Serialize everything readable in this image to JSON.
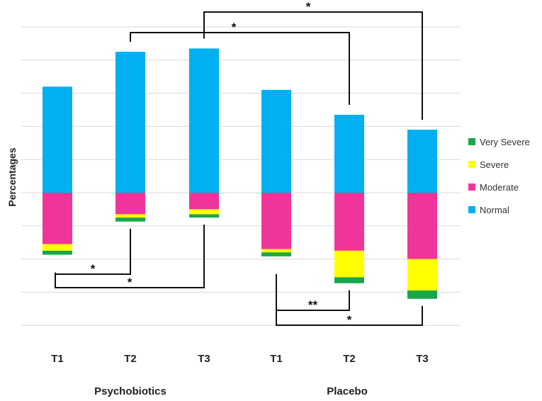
{
  "chart_data": {
    "type": "bar",
    "stacked": "diverging",
    "title": "",
    "xlabel": "",
    "ylabel": "Percentages",
    "categories": [
      "T1",
      "T2",
      "T3",
      "T1",
      "T2",
      "T3"
    ],
    "groups": [
      {
        "name": "Psychobiotics",
        "categories": [
          0,
          1,
          2
        ]
      },
      {
        "name": "Placebo",
        "categories": [
          3,
          4,
          5
        ]
      }
    ],
    "series": [
      {
        "name": "Very Severe",
        "color": "#1aa64a",
        "direction": "negative",
        "values": [
          1.2,
          1.2,
          1.0,
          1.2,
          1.8,
          2.5
        ]
      },
      {
        "name": "Severe",
        "color": "#ffff00",
        "direction": "negative",
        "values": [
          2.0,
          1.0,
          1.5,
          1.0,
          8.0,
          9.5
        ]
      },
      {
        "name": "Moderate",
        "color": "#f0359a",
        "direction": "negative",
        "values": [
          15.5,
          6.5,
          5.0,
          17.0,
          17.5,
          20.0
        ]
      },
      {
        "name": "Normal",
        "color": "#00b0f0",
        "direction": "positive",
        "values": [
          32.0,
          42.5,
          43.5,
          31.0,
          23.5,
          19.0
        ]
      }
    ],
    "ylim": [
      -41.5,
      57.5
    ],
    "gridlines": [
      -40,
      -30,
      -20,
      -10,
      0,
      10,
      20,
      30,
      40,
      50
    ],
    "legend": {
      "position": "right",
      "order": [
        "Very Severe",
        "Severe",
        "Moderate",
        "Normal"
      ]
    },
    "significance": [
      {
        "from": 1,
        "to": 4,
        "side": "top",
        "label": "*"
      },
      {
        "from": 2,
        "to": 5,
        "side": "top",
        "label": "*"
      },
      {
        "from": 0,
        "to": 1,
        "side": "bottom",
        "label": "*"
      },
      {
        "from": 0,
        "to": 2,
        "side": "bottom",
        "label": "*"
      },
      {
        "from": 3,
        "to": 4,
        "side": "bottom",
        "label": "**"
      },
      {
        "from": 3,
        "to": 5,
        "side": "bottom",
        "label": "*"
      }
    ]
  }
}
